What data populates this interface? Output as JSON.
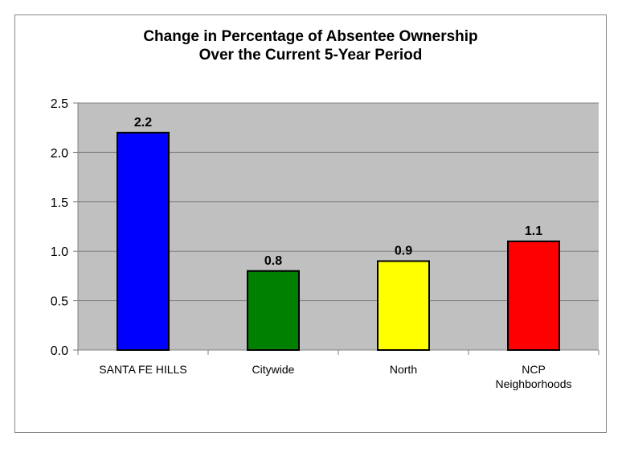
{
  "chart_data": {
    "type": "bar",
    "title": [
      "Change in Percentage of Absentee Ownership",
      "Over the Current 5-Year Period"
    ],
    "categories": [
      [
        "SANTA FE HILLS"
      ],
      [
        "Citywide"
      ],
      [
        "North"
      ],
      [
        "NCP",
        "Neighborhoods"
      ]
    ],
    "values": [
      2.2,
      0.8,
      0.9,
      1.1
    ],
    "data_labels": [
      "2.2",
      "0.8",
      "0.9",
      "1.1"
    ],
    "colors": [
      "#0000ff",
      "#008000",
      "#ffff00",
      "#ff0000"
    ],
    "ylim": [
      0,
      2.5
    ],
    "yticks": [
      0.0,
      0.5,
      1.0,
      1.5,
      2.0,
      2.5
    ],
    "ytick_labels": [
      "0.0",
      "0.5",
      "1.0",
      "1.5",
      "2.0",
      "2.5"
    ],
    "grid": true,
    "plot_background": "#c0c0c0",
    "xlabel": "",
    "ylabel": ""
  }
}
